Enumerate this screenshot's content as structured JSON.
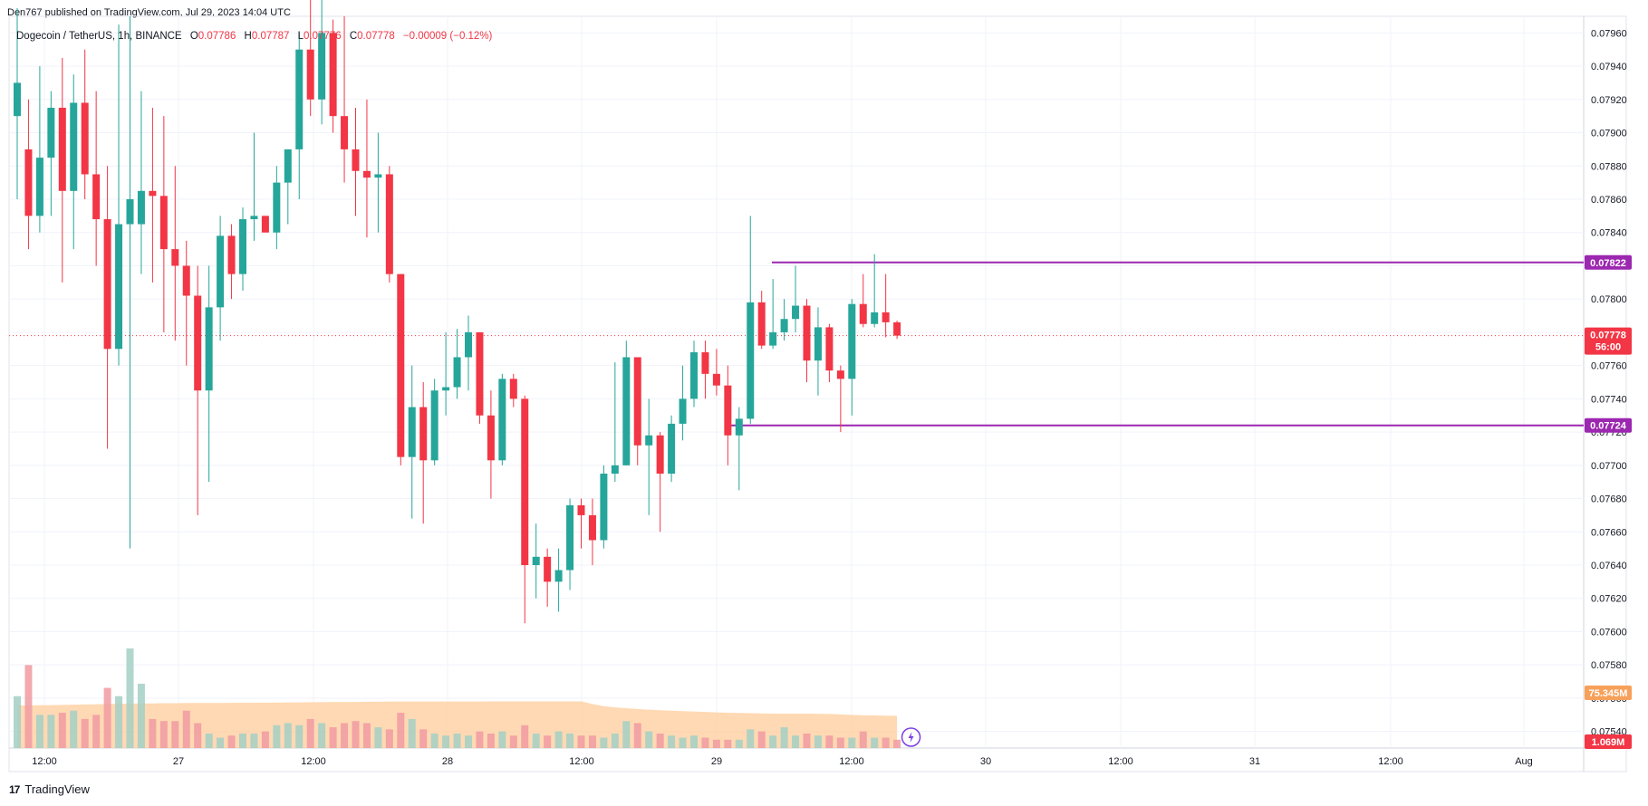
{
  "header": {
    "published": "Den767 published on TradingView.com, Jul 29, 2023 14:04 UTC"
  },
  "legend": {
    "symbol": "Dogecoin / TetherUS, 1h, BINANCE",
    "o_label": "O",
    "o": "0.07786",
    "h_label": "H",
    "h": "0.07787",
    "l_label": "L",
    "l": "0.07776",
    "c_label": "C",
    "c": "0.07778",
    "change": "−0.00009 (−0.12%)"
  },
  "brand": {
    "name": "TradingView",
    "logo_text": "17"
  },
  "price_labels": {
    "resistance": "0.07822",
    "support": "0.07724",
    "last_price": "0.07778",
    "countdown": "56:00",
    "volume_ma": "75.345M",
    "volume_last": "1.069M"
  },
  "colors": {
    "up": "#26a69a",
    "down": "#f23645",
    "level": "#9c27b0",
    "volume_ma_fill": "#ffcc99",
    "volume_ma_badge": "#f7a05a",
    "grid": "#f0f3fa"
  },
  "chart_data": {
    "type": "candlestick",
    "timeframe": "1h",
    "ylim": [
      0.0753,
      0.0797
    ],
    "y_ticks": [
      "0.07960",
      "0.07940",
      "0.07920",
      "0.07900",
      "0.07880",
      "0.07860",
      "0.07840",
      "0.07820",
      "0.07800",
      "0.07780",
      "0.07760",
      "0.07740",
      "0.07720",
      "0.07700",
      "0.07680",
      "0.07660",
      "0.07640",
      "0.07620",
      "0.07600",
      "0.07580",
      "0.07560",
      "0.07540"
    ],
    "x_ticks": [
      "12:00",
      "27",
      "12:00",
      "28",
      "12:00",
      "29",
      "12:00",
      "30",
      "12:00",
      "31",
      "12:00",
      "Aug"
    ],
    "horizontal_levels": [
      {
        "value": 0.07822
      },
      {
        "value": 0.07724
      }
    ],
    "last_price": 0.07778,
    "candles": [
      {
        "o": 0.0791,
        "h": 0.07975,
        "l": 0.0786,
        "c": 0.0793
      },
      {
        "o": 0.0789,
        "h": 0.0792,
        "l": 0.0783,
        "c": 0.0785
      },
      {
        "o": 0.0785,
        "h": 0.0794,
        "l": 0.0784,
        "c": 0.07885
      },
      {
        "o": 0.07885,
        "h": 0.07925,
        "l": 0.0785,
        "c": 0.07915
      },
      {
        "o": 0.07915,
        "h": 0.07945,
        "l": 0.0781,
        "c": 0.07865
      },
      {
        "o": 0.07865,
        "h": 0.07935,
        "l": 0.0783,
        "c": 0.07918
      },
      {
        "o": 0.07918,
        "h": 0.0795,
        "l": 0.0786,
        "c": 0.07875
      },
      {
        "o": 0.07875,
        "h": 0.07925,
        "l": 0.0782,
        "c": 0.07848
      },
      {
        "o": 0.07848,
        "h": 0.0788,
        "l": 0.0771,
        "c": 0.0777
      },
      {
        "o": 0.0777,
        "h": 0.07965,
        "l": 0.0776,
        "c": 0.07845
      },
      {
        "o": 0.07845,
        "h": 0.0797,
        "l": 0.0765,
        "c": 0.0786
      },
      {
        "o": 0.07845,
        "h": 0.07925,
        "l": 0.07815,
        "c": 0.07865
      },
      {
        "o": 0.07865,
        "h": 0.07915,
        "l": 0.0781,
        "c": 0.07862
      },
      {
        "o": 0.07862,
        "h": 0.0791,
        "l": 0.0778,
        "c": 0.0783
      },
      {
        "o": 0.0783,
        "h": 0.0788,
        "l": 0.07775,
        "c": 0.0782
      },
      {
        "o": 0.0782,
        "h": 0.07835,
        "l": 0.0776,
        "c": 0.07802
      },
      {
        "o": 0.07802,
        "h": 0.0782,
        "l": 0.0767,
        "c": 0.07745
      },
      {
        "o": 0.07745,
        "h": 0.0782,
        "l": 0.0769,
        "c": 0.07795
      },
      {
        "o": 0.07795,
        "h": 0.0785,
        "l": 0.07775,
        "c": 0.07838
      },
      {
        "o": 0.07838,
        "h": 0.07845,
        "l": 0.078,
        "c": 0.07815
      },
      {
        "o": 0.07815,
        "h": 0.07855,
        "l": 0.07805,
        "c": 0.07848
      },
      {
        "o": 0.07848,
        "h": 0.079,
        "l": 0.07835,
        "c": 0.0785
      },
      {
        "o": 0.0785,
        "h": 0.0785,
        "l": 0.0784,
        "c": 0.0784
      },
      {
        "o": 0.0784,
        "h": 0.0788,
        "l": 0.0783,
        "c": 0.0787
      },
      {
        "o": 0.0787,
        "h": 0.0789,
        "l": 0.07845,
        "c": 0.0789
      },
      {
        "o": 0.0789,
        "h": 0.0796,
        "l": 0.0786,
        "c": 0.0795
      },
      {
        "o": 0.0795,
        "h": 0.0799,
        "l": 0.0791,
        "c": 0.0792
      },
      {
        "o": 0.0792,
        "h": 0.0798,
        "l": 0.07905,
        "c": 0.0796
      },
      {
        "o": 0.0796,
        "h": 0.07968,
        "l": 0.079,
        "c": 0.0791
      },
      {
        "o": 0.0791,
        "h": 0.0797,
        "l": 0.0787,
        "c": 0.0789
      },
      {
        "o": 0.0789,
        "h": 0.07915,
        "l": 0.0785,
        "c": 0.07877
      },
      {
        "o": 0.07877,
        "h": 0.0792,
        "l": 0.07837,
        "c": 0.07873
      },
      {
        "o": 0.07873,
        "h": 0.079,
        "l": 0.0784,
        "c": 0.07875
      },
      {
        "o": 0.07875,
        "h": 0.0788,
        "l": 0.0781,
        "c": 0.07815
      },
      {
        "o": 0.07815,
        "h": 0.07815,
        "l": 0.077,
        "c": 0.07705
      },
      {
        "o": 0.07705,
        "h": 0.0776,
        "l": 0.07668,
        "c": 0.07735
      },
      {
        "o": 0.07735,
        "h": 0.0775,
        "l": 0.07665,
        "c": 0.07703
      },
      {
        "o": 0.07703,
        "h": 0.07752,
        "l": 0.077,
        "c": 0.07745
      },
      {
        "o": 0.07745,
        "h": 0.0778,
        "l": 0.0773,
        "c": 0.07747
      },
      {
        "o": 0.07747,
        "h": 0.07782,
        "l": 0.0774,
        "c": 0.07765
      },
      {
        "o": 0.07765,
        "h": 0.0779,
        "l": 0.07745,
        "c": 0.0778
      },
      {
        "o": 0.0778,
        "h": 0.0778,
        "l": 0.07725,
        "c": 0.0773
      },
      {
        "o": 0.0773,
        "h": 0.07745,
        "l": 0.0768,
        "c": 0.07703
      },
      {
        "o": 0.07703,
        "h": 0.07755,
        "l": 0.077,
        "c": 0.07752
      },
      {
        "o": 0.07752,
        "h": 0.07755,
        "l": 0.07735,
        "c": 0.0774
      },
      {
        "o": 0.0774,
        "h": 0.07742,
        "l": 0.07605,
        "c": 0.0764
      },
      {
        "o": 0.0764,
        "h": 0.07665,
        "l": 0.0762,
        "c": 0.07645
      },
      {
        "o": 0.07645,
        "h": 0.0765,
        "l": 0.07615,
        "c": 0.0763
      },
      {
        "o": 0.0763,
        "h": 0.0765,
        "l": 0.07612,
        "c": 0.07637
      },
      {
        "o": 0.07637,
        "h": 0.0768,
        "l": 0.07625,
        "c": 0.07676
      },
      {
        "o": 0.07676,
        "h": 0.0768,
        "l": 0.0765,
        "c": 0.0767
      },
      {
        "o": 0.0767,
        "h": 0.0768,
        "l": 0.0764,
        "c": 0.07655
      },
      {
        "o": 0.07655,
        "h": 0.077,
        "l": 0.0765,
        "c": 0.07695
      },
      {
        "o": 0.07695,
        "h": 0.07762,
        "l": 0.0769,
        "c": 0.077
      },
      {
        "o": 0.077,
        "h": 0.07775,
        "l": 0.077,
        "c": 0.07765
      },
      {
        "o": 0.07765,
        "h": 0.07765,
        "l": 0.077,
        "c": 0.07712
      },
      {
        "o": 0.07712,
        "h": 0.0774,
        "l": 0.0767,
        "c": 0.07718
      },
      {
        "o": 0.07718,
        "h": 0.0772,
        "l": 0.0766,
        "c": 0.07695
      },
      {
        "o": 0.07695,
        "h": 0.0773,
        "l": 0.0769,
        "c": 0.07725
      },
      {
        "o": 0.07725,
        "h": 0.0776,
        "l": 0.07715,
        "c": 0.0774
      },
      {
        "o": 0.0774,
        "h": 0.07775,
        "l": 0.07735,
        "c": 0.07768
      },
      {
        "o": 0.07768,
        "h": 0.07775,
        "l": 0.0774,
        "c": 0.07755
      },
      {
        "o": 0.07755,
        "h": 0.0777,
        "l": 0.07742,
        "c": 0.07748
      },
      {
        "o": 0.07748,
        "h": 0.0776,
        "l": 0.077,
        "c": 0.07718
      },
      {
        "o": 0.07718,
        "h": 0.07735,
        "l": 0.07685,
        "c": 0.07728
      },
      {
        "o": 0.07728,
        "h": 0.0785,
        "l": 0.07725,
        "c": 0.07798
      },
      {
        "o": 0.07798,
        "h": 0.07805,
        "l": 0.0777,
        "c": 0.07772
      },
      {
        "o": 0.07772,
        "h": 0.07812,
        "l": 0.0777,
        "c": 0.0778
      },
      {
        "o": 0.0778,
        "h": 0.078,
        "l": 0.07775,
        "c": 0.07788
      },
      {
        "o": 0.07788,
        "h": 0.0782,
        "l": 0.0778,
        "c": 0.07796
      },
      {
        "o": 0.07796,
        "h": 0.078,
        "l": 0.0775,
        "c": 0.07763
      },
      {
        "o": 0.07763,
        "h": 0.07795,
        "l": 0.07742,
        "c": 0.07783
      },
      {
        "o": 0.07783,
        "h": 0.07785,
        "l": 0.0775,
        "c": 0.07757
      },
      {
        "o": 0.07757,
        "h": 0.0776,
        "l": 0.0772,
        "c": 0.07752
      },
      {
        "o": 0.07752,
        "h": 0.078,
        "l": 0.0773,
        "c": 0.07797
      },
      {
        "o": 0.07797,
        "h": 0.07815,
        "l": 0.07783,
        "c": 0.07785
      },
      {
        "o": 0.07785,
        "h": 0.07827,
        "l": 0.07783,
        "c": 0.07792
      },
      {
        "o": 0.07792,
        "h": 0.07815,
        "l": 0.07777,
        "c": 0.07786
      },
      {
        "o": 0.07786,
        "h": 0.07787,
        "l": 0.07776,
        "c": 0.07778
      }
    ],
    "volume": [
      2.5,
      4.0,
      1.6,
      1.6,
      1.7,
      1.8,
      1.4,
      1.6,
      2.9,
      2.5,
      4.8,
      3.1,
      1.4,
      1.3,
      1.3,
      1.8,
      1.2,
      0.7,
      0.5,
      0.6,
      0.7,
      0.7,
      0.8,
      1.1,
      1.2,
      1.1,
      1.4,
      1.2,
      1.0,
      1.2,
      1.3,
      1.2,
      1.0,
      0.9,
      1.7,
      1.4,
      0.9,
      0.7,
      0.6,
      0.7,
      0.6,
      0.8,
      0.7,
      0.8,
      0.6,
      1.1,
      0.7,
      0.6,
      0.8,
      0.7,
      0.6,
      0.6,
      0.5,
      0.7,
      1.3,
      1.2,
      0.8,
      0.7,
      0.6,
      0.5,
      0.6,
      0.5,
      0.4,
      0.4,
      0.4,
      0.9,
      0.8,
      0.6,
      1.0,
      0.6,
      0.7,
      0.6,
      0.6,
      0.5,
      0.5,
      0.8,
      0.5,
      0.5,
      0.4
    ],
    "volume_ma": [
      2.05,
      2.05,
      2.06,
      2.07,
      2.08,
      2.09,
      2.1,
      2.11,
      2.12,
      2.13,
      2.14,
      2.15,
      2.15,
      2.16,
      2.16,
      2.17,
      2.17,
      2.17,
      2.17,
      2.18,
      2.18,
      2.18,
      2.19,
      2.19,
      2.2,
      2.2,
      2.21,
      2.21,
      2.22,
      2.22,
      2.22,
      2.23,
      2.23,
      2.24,
      2.24,
      2.24,
      2.24,
      2.24,
      2.24,
      2.24,
      2.24,
      2.24,
      2.25,
      2.25,
      2.25,
      2.25,
      2.25,
      2.25,
      2.25,
      2.25,
      2.25,
      2.12,
      2.02,
      1.96,
      1.92,
      1.88,
      1.85,
      1.82,
      1.8,
      1.78,
      1.76,
      1.74,
      1.72,
      1.7,
      1.69,
      1.68,
      1.67,
      1.66,
      1.66,
      1.66,
      1.66,
      1.65,
      1.64,
      1.62,
      1.6,
      1.58,
      1.57,
      1.56,
      1.55
    ],
    "volume_ylim": [
      0,
      5.5
    ]
  }
}
